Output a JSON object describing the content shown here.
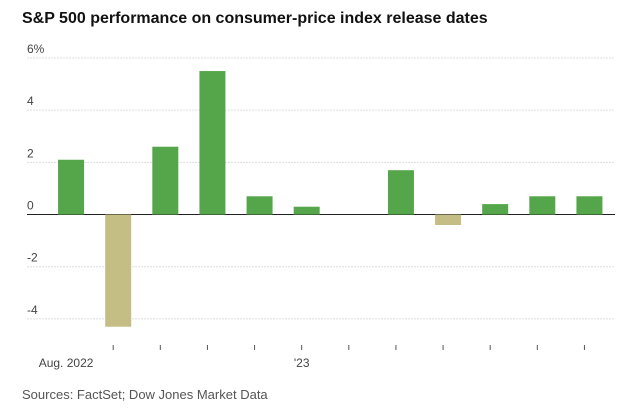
{
  "chart_data": {
    "type": "bar",
    "title": "S&P 500 performance on consumer-price index release dates",
    "source": "Sources: FactSet; Dow Jones Market Data",
    "categories": [
      "Aug. 2022",
      null,
      null,
      null,
      null,
      "'23",
      null,
      null,
      null,
      null,
      null,
      null
    ],
    "values": [
      2.1,
      -4.3,
      2.6,
      5.5,
      0.7,
      0.3,
      0,
      1.7,
      -0.4,
      0.4,
      0.7,
      0.7
    ],
    "color": "#55a64a",
    "negative_color": "#c4bd84",
    "ylim": [
      -5,
      6
    ],
    "yticks": [
      {
        "value": 6,
        "label": "6%"
      },
      4,
      2,
      0,
      -2,
      -4
    ],
    "grid": true
  }
}
